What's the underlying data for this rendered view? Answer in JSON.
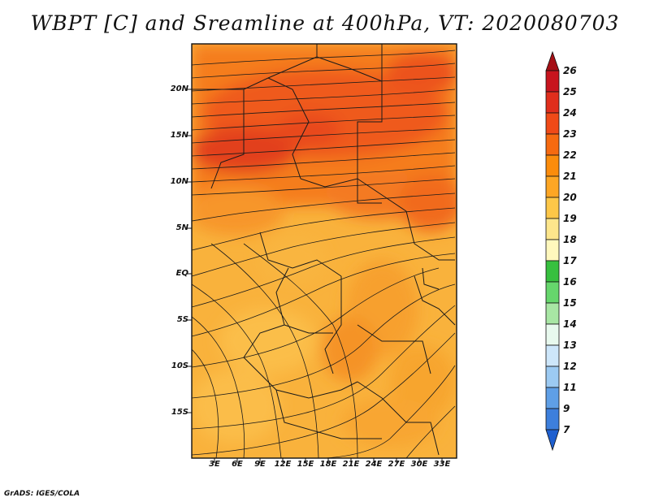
{
  "title": "WBPT [C] and Sreamline at 400hPa, VT: 2020080703",
  "footer": "GrADS: IGES/COLA",
  "map": {
    "lat_labels": [
      "20N",
      "15N",
      "10N",
      "5N",
      "EQ",
      "5S",
      "10S",
      "15S"
    ],
    "lon_labels": [
      "3E",
      "6E",
      "9E",
      "12E",
      "15E",
      "18E",
      "21E",
      "24E",
      "27E",
      "30E",
      "33E"
    ]
  },
  "colorbar": {
    "labels": [
      "26",
      "25",
      "24",
      "23",
      "22",
      "21",
      "20",
      "19",
      "18",
      "17",
      "16",
      "15",
      "14",
      "13",
      "12",
      "11",
      "9",
      "7"
    ],
    "colors": [
      "#a50f15",
      "#c8141e",
      "#e02e1c",
      "#f04a17",
      "#f66a10",
      "#fb8c0c",
      "#fda624",
      "#fdc748",
      "#fde68c",
      "#fff8bd",
      "#37c03f",
      "#66d66c",
      "#a8e6a4",
      "#e8f9ee",
      "#cde6fa",
      "#9ccaf2",
      "#5f9fe6",
      "#3d7fdc",
      "#1e5fcf"
    ]
  }
}
